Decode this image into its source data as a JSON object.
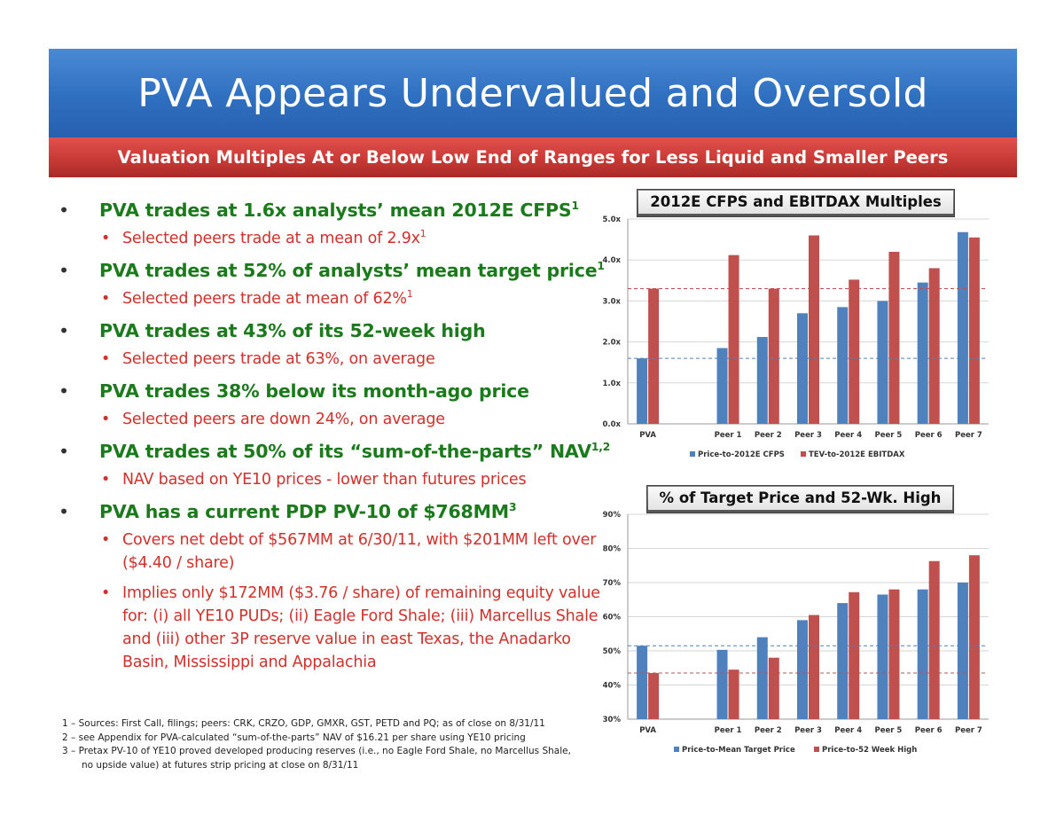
{
  "header": {
    "title": "PVA Appears Undervalued and Oversold",
    "subtitle": "Valuation Multiples At or Below Low End of Ranges for Less Liquid and Smaller Peers"
  },
  "bullets": [
    {
      "text": "PVA trades at 1.6x analysts’ mean 2012E CFPS",
      "sup": "1",
      "subs": [
        {
          "text": "Selected peers trade at a mean of 2.9x",
          "sup": "1"
        }
      ]
    },
    {
      "text": "PVA trades at 52% of analysts’ mean target price",
      "sup": "1",
      "subs": [
        {
          "text": "Selected peers trade at mean of 62%",
          "sup": "1"
        }
      ]
    },
    {
      "text": "PVA trades at 43% of its 52-week high",
      "sup": "",
      "subs": [
        {
          "text": "Selected peers trade at 63%, on average",
          "sup": ""
        }
      ]
    },
    {
      "text": "PVA trades 38% below its month-ago price",
      "sup": "",
      "subs": [
        {
          "text": "Selected peers are down 24%, on average",
          "sup": ""
        }
      ]
    },
    {
      "text": "PVA trades at 50% of its “sum-of-the-parts” NAV",
      "sup": "1,2",
      "subs": [
        {
          "text": "NAV based on YE10 prices - lower than futures prices",
          "sup": ""
        }
      ]
    },
    {
      "text": "PVA has a current PDP PV-10 of $768MM",
      "sup": "3",
      "subs": [
        {
          "text": "Covers net debt of $567MM at 6/30/11, with $201MM left over ($4.40 / share)",
          "sup": ""
        },
        {
          "text": "Implies only $172MM ($3.76 / share) of remaining equity value for: (i) all YE10 PUDs; (ii) Eagle Ford Shale; (iii) Marcellus Shale and (iii) other 3P reserve value in east Texas, the Anadarko Basin, Mississippi and Appalachia",
          "sup": ""
        }
      ]
    }
  ],
  "footnotes": [
    "1 – Sources: First Call, filings; peers: CRK, CRZO, GDP, GMXR, GST, PETD and PQ; as of close on 8/31/11",
    "2 – see Appendix for PVA-calculated “sum-of-the-parts” NAV of $16.21 per share using YE10 pricing",
    "3 – Pretax PV-10 of YE10 proved developed producing reserves (i.e., no Eagle Ford Shale, no Marcellus Shale,",
    "no upside value) at futures strip pricing at close on 8/31/11"
  ],
  "colors": {
    "blue": "#4f81bd",
    "red": "#c0504d"
  },
  "chart_data": [
    {
      "type": "bar",
      "title": "2012E CFPS and EBITDAX Multiples",
      "categories": [
        "PVA",
        "",
        "Peer 1",
        "Peer 2",
        "Peer 3",
        "Peer 4",
        "Peer 5",
        "Peer 6",
        "Peer 7"
      ],
      "series": [
        {
          "name": "Price-to-2012E CFPS",
          "color": "#4f81bd",
          "values": [
            1.6,
            null,
            1.85,
            2.12,
            2.7,
            2.85,
            3.0,
            3.45,
            4.68
          ]
        },
        {
          "name": "TEV-to-2012E EBITDAX",
          "color": "#c0504d",
          "values": [
            3.3,
            null,
            4.12,
            3.3,
            4.6,
            3.52,
            4.2,
            3.8,
            4.55
          ]
        }
      ],
      "yticks": [
        "0.0x",
        "1.0x",
        "2.0x",
        "3.0x",
        "4.0x",
        "5.0x"
      ],
      "ylim": [
        0,
        5
      ],
      "reference_lines": [
        {
          "value": 1.6,
          "color": "#4f81bd"
        },
        {
          "value": 3.3,
          "color": "#c0504d"
        }
      ],
      "legend": "bottom",
      "grid": true
    },
    {
      "type": "bar",
      "title": "% of Target Price and 52-Wk. High",
      "categories": [
        "PVA",
        "",
        "Peer 1",
        "Peer 2",
        "Peer 3",
        "Peer 4",
        "Peer 5",
        "Peer 6",
        "Peer 7"
      ],
      "series": [
        {
          "name": "Price-to-Mean Target Price",
          "color": "#4f81bd",
          "values": [
            51.5,
            null,
            50.3,
            54,
            59,
            64,
            66.5,
            68,
            70
          ]
        },
        {
          "name": "Price-to-52 Week High",
          "color": "#c0504d",
          "values": [
            43.5,
            null,
            44.5,
            48,
            60.5,
            67.2,
            68,
            76.3,
            78
          ]
        }
      ],
      "yticks": [
        "30%",
        "40%",
        "50%",
        "60%",
        "70%",
        "80%",
        "90%"
      ],
      "ylim": [
        30,
        90
      ],
      "reference_lines": [
        {
          "value": 51.5,
          "color": "#4f81bd"
        },
        {
          "value": 43.5,
          "color": "#c0504d"
        }
      ],
      "legend": "bottom",
      "grid": true
    }
  ]
}
